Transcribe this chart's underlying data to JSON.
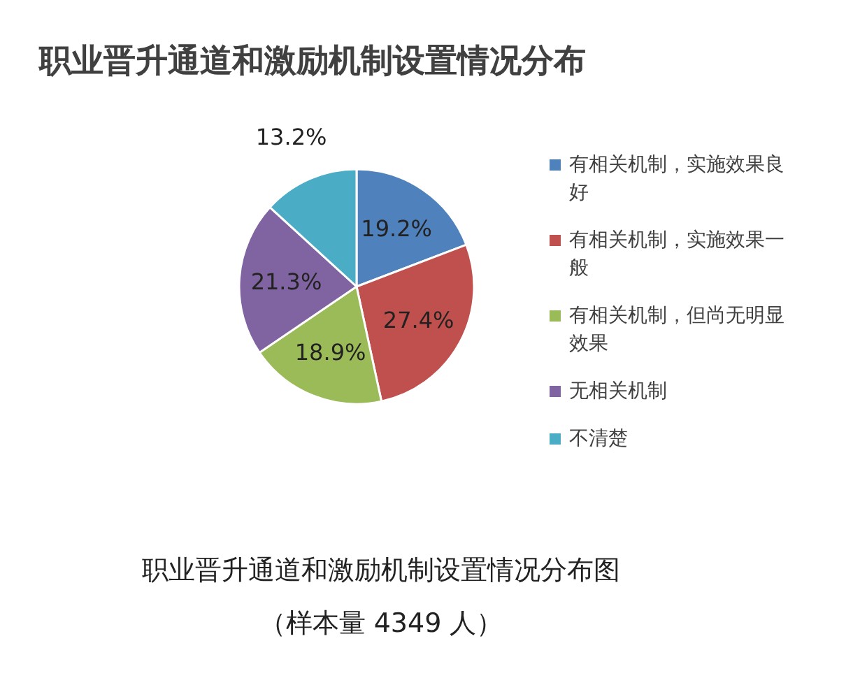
{
  "chart_data": {
    "type": "pie",
    "title": "职业晋升通道和激励机制设置情况分布",
    "categories": [
      "有相关机制，实施效果良好",
      "有相关机制，实施效果一般",
      "有相关机制，但尚无明显效果",
      "无相关机制",
      "不清楚"
    ],
    "values": [
      19.2,
      27.4,
      18.9,
      21.3,
      13.2
    ],
    "colors": [
      "#4f81bd",
      "#c0504d",
      "#9bbb59",
      "#8064a2",
      "#4bacc6"
    ],
    "value_labels": [
      "19.2%",
      "27.4%",
      "18.9%",
      "21.3%",
      "13.2%"
    ],
    "legend": "right",
    "annotations": [
      "职业晋升通道和激励机制设置情况分布图",
      "（样本量 4349 人）"
    ]
  }
}
